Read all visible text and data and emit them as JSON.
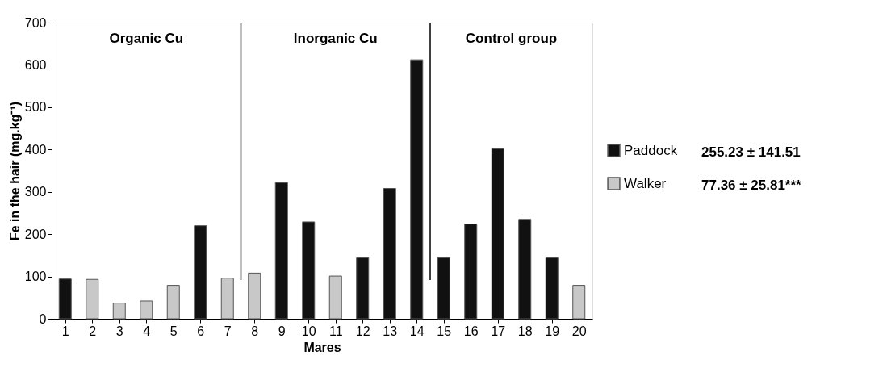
{
  "chart_data": {
    "type": "bar",
    "xlabel": "Mares",
    "ylabel": "Fe in the hair (mg.kg⁻¹)",
    "x": [
      1,
      2,
      3,
      4,
      5,
      6,
      7,
      8,
      9,
      10,
      11,
      12,
      13,
      14,
      15,
      16,
      17,
      18,
      19,
      20
    ],
    "xlim": [
      0.5,
      20.5
    ],
    "xticks": [
      1,
      2,
      3,
      4,
      5,
      6,
      7,
      8,
      9,
      10,
      11,
      12,
      13,
      14,
      15,
      16,
      17,
      18,
      19,
      20
    ],
    "ylim": [
      0,
      700
    ],
    "yticks": [
      0,
      100,
      200,
      300,
      400,
      500,
      600,
      700
    ],
    "series": [
      {
        "name": "Paddock",
        "color": "#111111",
        "values": [
          94,
          null,
          null,
          null,
          null,
          220,
          null,
          null,
          322,
          229,
          null,
          144,
          308,
          612,
          144,
          224,
          402,
          235,
          144,
          null
        ]
      },
      {
        "name": "Walker",
        "color": "#c8c8c8",
        "values": [
          null,
          93,
          37,
          42,
          79,
          null,
          96,
          108,
          null,
          null,
          101,
          null,
          null,
          null,
          null,
          null,
          null,
          null,
          null,
          79
        ]
      }
    ],
    "ref_lines": [
      {
        "axis": "x",
        "value": 7.5,
        "color": "#000000"
      },
      {
        "axis": "x",
        "value": 14.5,
        "color": "#000000"
      }
    ],
    "annotations": [
      "Organic Cu",
      "Inorganic Cu",
      "Control group",
      "255.23 ± 141.51",
      "77.36 ± 25.81***"
    ],
    "legend": "right",
    "grid": false
  }
}
